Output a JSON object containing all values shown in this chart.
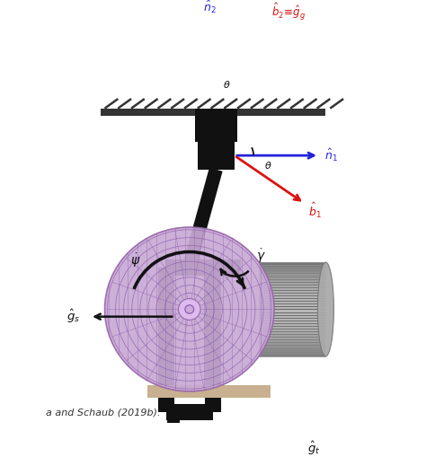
{
  "bg_color": "#ffffff",
  "fig_width": 4.74,
  "fig_height": 5.09,
  "dpi": 100,
  "caption": "a and Schaub (2019b).",
  "caption_fontsize": 8,
  "arrow_blue": "#2222dd",
  "arrow_red": "#dd1111",
  "arrow_black": "#111111",
  "hatch_color": "#333333",
  "frame_color": "#111111"
}
